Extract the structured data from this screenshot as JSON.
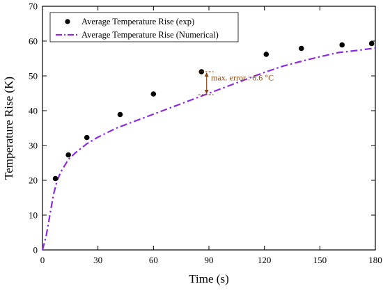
{
  "chart_data": {
    "type": "line",
    "title": "",
    "xlabel": "Time (s)",
    "ylabel": "Temperature Rise (K)",
    "xlim": [
      0,
      180
    ],
    "ylim": [
      0,
      70
    ],
    "x_ticks": [
      0,
      30,
      60,
      90,
      120,
      150,
      180
    ],
    "y_ticks": [
      0,
      10,
      20,
      30,
      40,
      50,
      60,
      70
    ],
    "grid": false,
    "legend_position": "top-left",
    "series": [
      {
        "name": "Average Temperature Rise (exp)",
        "kind": "scatter",
        "color": "#000000",
        "x": [
          7,
          14,
          24,
          42,
          60,
          86,
          121,
          140,
          162,
          178
        ],
        "y": [
          20.5,
          27.3,
          32.3,
          38.9,
          44.8,
          51.2,
          56.2,
          57.9,
          58.9,
          59.3
        ]
      },
      {
        "name": "Average Temperature Rise (Numerical)",
        "kind": "line",
        "style": "dash-dot",
        "color": "#8A2BE2",
        "x": [
          0,
          2,
          4,
          6,
          8,
          10,
          14,
          18,
          24,
          30,
          40,
          50,
          60,
          70,
          80,
          90,
          100,
          110,
          120,
          130,
          140,
          150,
          160,
          170,
          180
        ],
        "y": [
          0,
          4,
          10,
          16,
          20,
          22.5,
          26,
          28,
          30.5,
          32.4,
          35,
          37,
          39,
          41,
          43,
          45,
          47,
          49,
          51,
          52.8,
          54.2,
          55.5,
          56.7,
          57.3,
          58
        ]
      }
    ],
    "annotations": [
      {
        "text": "max. error : 6.6 °C",
        "color": "#8B4513",
        "x": 88,
        "y_low": 44.6,
        "y_high": 51.2,
        "label_x": 90,
        "label_y": 49.5
      }
    ]
  }
}
